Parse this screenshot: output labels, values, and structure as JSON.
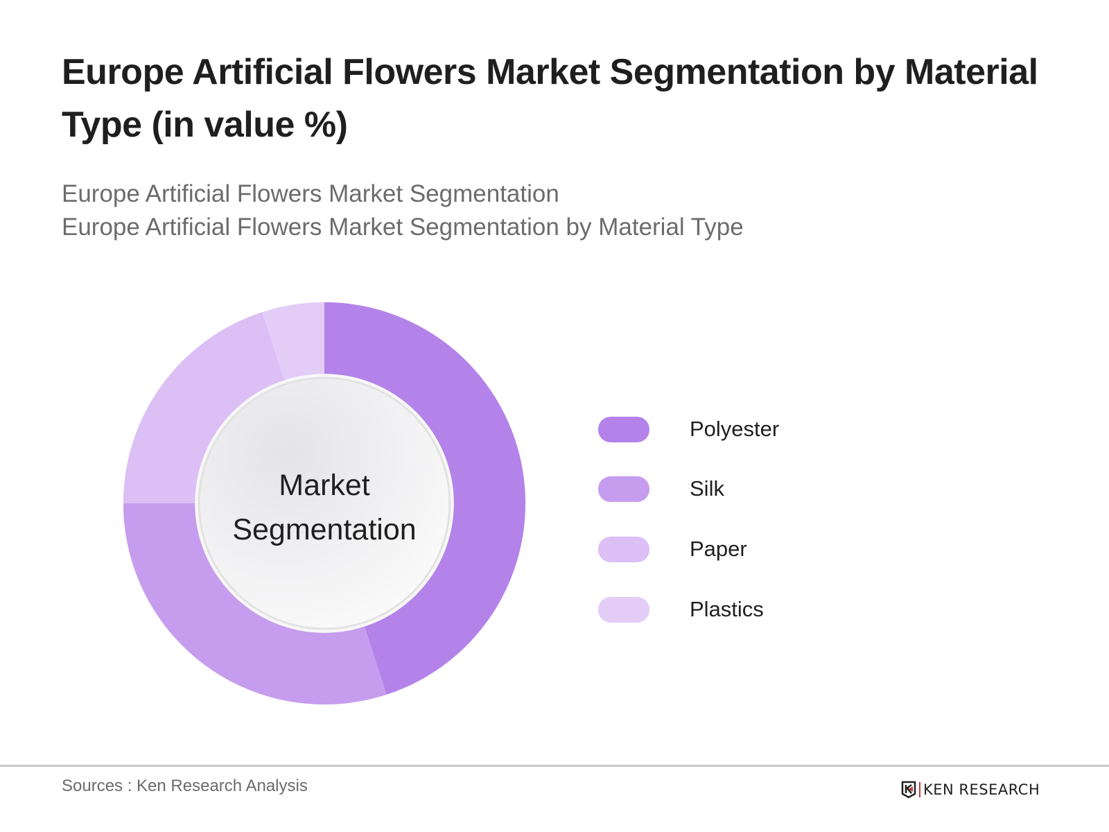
{
  "header": {
    "title": "Europe Artificial Flowers Market Segmentation by Material Type (in value %)",
    "subtitle_line1": "Europe Artificial Flowers Market Segmentation",
    "subtitle_line2": "Europe Artificial Flowers Market Segmentation by Material Type"
  },
  "donut": {
    "center_label_line1": "Market",
    "center_label_line2": "Segmentation"
  },
  "legend": [
    {
      "label": "Polyester",
      "color": "#b383ea"
    },
    {
      "label": "Silk",
      "color": "#c69dee"
    },
    {
      "label": "Paper",
      "color": "#dbbff5"
    },
    {
      "label": "Plastics",
      "color": "#e3cdf7"
    }
  ],
  "footer": {
    "sources": "Sources : Ken Research Analysis",
    "logo_text": "KEN RESEARCH"
  },
  "chart_data": {
    "type": "pie",
    "subtype": "donut",
    "title": "Europe Artificial Flowers Market Segmentation by Material Type (in value %)",
    "subtitle": [
      "Europe Artificial Flowers Market Segmentation",
      "Europe Artificial Flowers Market Segmentation by Material Type"
    ],
    "center_label": "Market Segmentation",
    "categories": [
      "Polyester",
      "Silk",
      "Paper",
      "Plastics"
    ],
    "values": [
      45,
      30,
      20,
      5
    ],
    "unit": "%",
    "colors": [
      "#b383ea",
      "#c69dee",
      "#dbbff5",
      "#e3cdf7"
    ],
    "start_angle": "12 o'clock, clockwise",
    "legend_position": "right",
    "data_labels": false,
    "source": "Sources : Ken Research Analysis"
  }
}
